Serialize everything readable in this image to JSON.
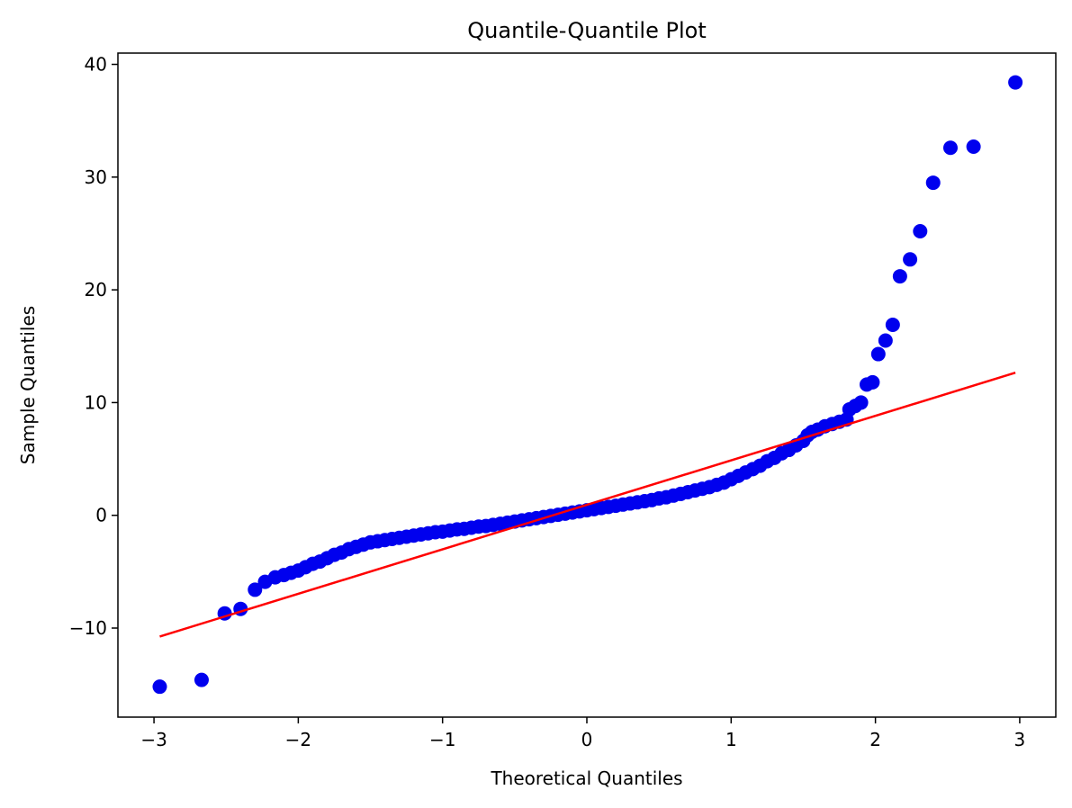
{
  "chart_data": {
    "type": "scatter",
    "title": "Quantile-Quantile Plot",
    "xlabel": "Theoretical Quantiles",
    "ylabel": "Sample Quantiles",
    "xlim": [
      -3.25,
      3.25
    ],
    "ylim": [
      -17.9,
      41.0
    ],
    "x_ticks": [
      -3,
      -2,
      -1,
      0,
      1,
      2,
      3
    ],
    "x_tick_labels": [
      "−3",
      "−2",
      "−1",
      "0",
      "1",
      "2",
      "3"
    ],
    "y_ticks": [
      -10,
      0,
      10,
      20,
      30,
      40
    ],
    "y_tick_labels": [
      "−10",
      "0",
      "10",
      "20",
      "30",
      "40"
    ],
    "grid": false,
    "series": [
      {
        "kind": "points",
        "color": "#0000ee",
        "x": [
          -2.96,
          -2.67,
          -2.51,
          -2.4,
          -2.3,
          -2.23,
          -2.16,
          -2.1,
          -2.05,
          -2.0,
          -1.95,
          -1.9,
          -1.85,
          -1.8,
          -1.75,
          -1.7,
          -1.65,
          -1.6,
          -1.55,
          -1.5,
          -1.45,
          -1.4,
          -1.35,
          -1.3,
          -1.25,
          -1.2,
          -1.15,
          -1.1,
          -1.05,
          -1.0,
          -0.95,
          -0.9,
          -0.85,
          -0.8,
          -0.75,
          -0.7,
          -0.65,
          -0.6,
          -0.55,
          -0.5,
          -0.45,
          -0.4,
          -0.35,
          -0.3,
          -0.25,
          -0.2,
          -0.15,
          -0.1,
          -0.05,
          0.0,
          0.05,
          0.1,
          0.15,
          0.2,
          0.25,
          0.3,
          0.35,
          0.4,
          0.45,
          0.5,
          0.55,
          0.6,
          0.65,
          0.7,
          0.75,
          0.8,
          0.85,
          0.9,
          0.95,
          1.0,
          1.05,
          1.1,
          1.15,
          1.2,
          1.25,
          1.3,
          1.35,
          1.4,
          1.45,
          1.5,
          1.53,
          1.56,
          1.6,
          1.65,
          1.7,
          1.75,
          1.8,
          1.82,
          1.86,
          1.9,
          1.94,
          1.98,
          2.02,
          2.07,
          2.12,
          2.17,
          2.24,
          2.31,
          2.4,
          2.52,
          2.68,
          2.97
        ],
        "y": [
          -15.2,
          -14.6,
          -8.7,
          -8.3,
          -6.6,
          -5.9,
          -5.5,
          -5.3,
          -5.1,
          -4.9,
          -4.6,
          -4.3,
          -4.1,
          -3.8,
          -3.5,
          -3.3,
          -3.0,
          -2.8,
          -2.6,
          -2.4,
          -2.3,
          -2.2,
          -2.1,
          -2.0,
          -1.9,
          -1.8,
          -1.7,
          -1.6,
          -1.5,
          -1.45,
          -1.35,
          -1.25,
          -1.2,
          -1.1,
          -1.0,
          -0.95,
          -0.85,
          -0.75,
          -0.65,
          -0.55,
          -0.45,
          -0.35,
          -0.25,
          -0.15,
          -0.05,
          0.05,
          0.15,
          0.25,
          0.35,
          0.45,
          0.55,
          0.65,
          0.75,
          0.85,
          0.95,
          1.05,
          1.15,
          1.25,
          1.35,
          1.5,
          1.6,
          1.75,
          1.9,
          2.05,
          2.2,
          2.35,
          2.5,
          2.7,
          2.9,
          3.2,
          3.5,
          3.8,
          4.1,
          4.4,
          4.8,
          5.1,
          5.5,
          5.8,
          6.2,
          6.6,
          7.1,
          7.4,
          7.6,
          7.9,
          8.1,
          8.3,
          8.5,
          9.4,
          9.7,
          10.0,
          11.6,
          11.8,
          14.3,
          15.5,
          16.9,
          21.2,
          22.7,
          25.2,
          29.5,
          32.6,
          32.7,
          38.4
        ]
      },
      {
        "kind": "line",
        "color": "#ff0000",
        "x": [
          -2.96,
          2.97
        ],
        "y": [
          -10.75,
          12.65
        ]
      }
    ]
  }
}
